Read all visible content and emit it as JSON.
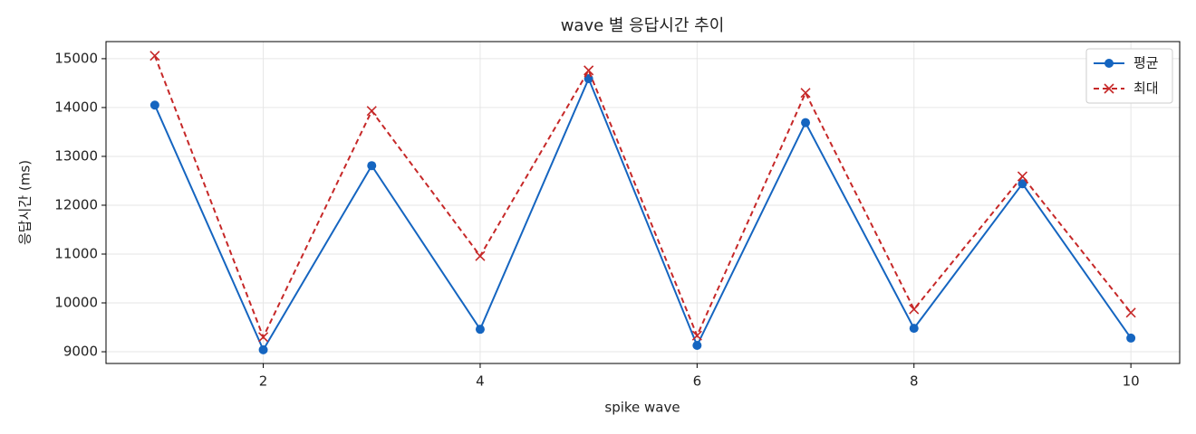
{
  "chart_data": {
    "type": "line",
    "title": "wave 별 응답시간 추이",
    "xlabel": "spike wave",
    "ylabel": "응답시간 (ms)",
    "x": [
      1,
      2,
      3,
      4,
      5,
      6,
      7,
      8,
      9,
      10
    ],
    "series": [
      {
        "name": "평균",
        "color": "#1565c0",
        "marker": "circle",
        "dash": false,
        "values": [
          14050,
          9040,
          12810,
          9460,
          14590,
          9130,
          13690,
          9480,
          12440,
          9280
        ]
      },
      {
        "name": "최대",
        "color": "#c62828",
        "marker": "x",
        "dash": true,
        "values": [
          15060,
          9300,
          13930,
          10960,
          14760,
          9330,
          14300,
          9870,
          12590,
          9800
        ]
      }
    ],
    "xlim": [
      0.55,
      10.45
    ],
    "xticks": [
      2,
      4,
      6,
      8,
      10
    ],
    "ylim": [
      8760,
      15350
    ],
    "yticks": [
      9000,
      10000,
      11000,
      12000,
      13000,
      14000,
      15000
    ],
    "grid": true,
    "legend": "upper right"
  }
}
